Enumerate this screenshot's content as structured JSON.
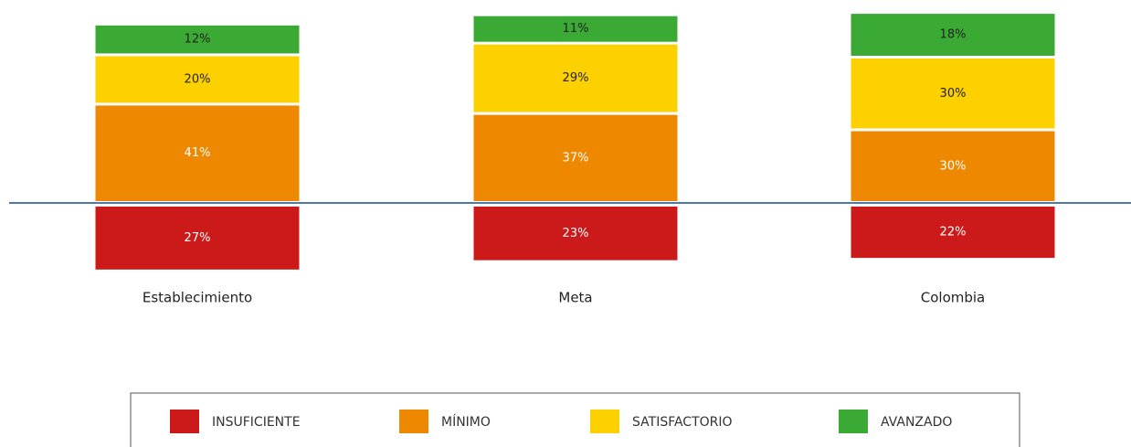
{
  "chart_data": {
    "type": "bar",
    "stacked": true,
    "diverging": true,
    "categories": [
      "Establecimiento",
      "Meta",
      "Colombia"
    ],
    "series": [
      {
        "name": "INSUFICIENTE",
        "color": "#cc1a1a",
        "values": [
          27,
          23,
          22
        ],
        "value_labels": [
          "27%",
          "23%",
          "22%"
        ]
      },
      {
        "name": "MÍNIMO",
        "color": "#ee8800",
        "values": [
          41,
          37,
          30
        ],
        "value_labels": [
          "41%",
          "37%",
          "30%"
        ]
      },
      {
        "name": "SATISFACTORIO",
        "color": "#fdd100",
        "values": [
          20,
          29,
          30
        ],
        "value_labels": [
          "20%",
          "29%",
          "30%"
        ]
      },
      {
        "name": "AVANZADO",
        "color": "#3aaa35",
        "values": [
          12,
          11,
          18
        ],
        "value_labels": [
          "12%",
          "11%",
          "18%"
        ]
      }
    ]
  }
}
